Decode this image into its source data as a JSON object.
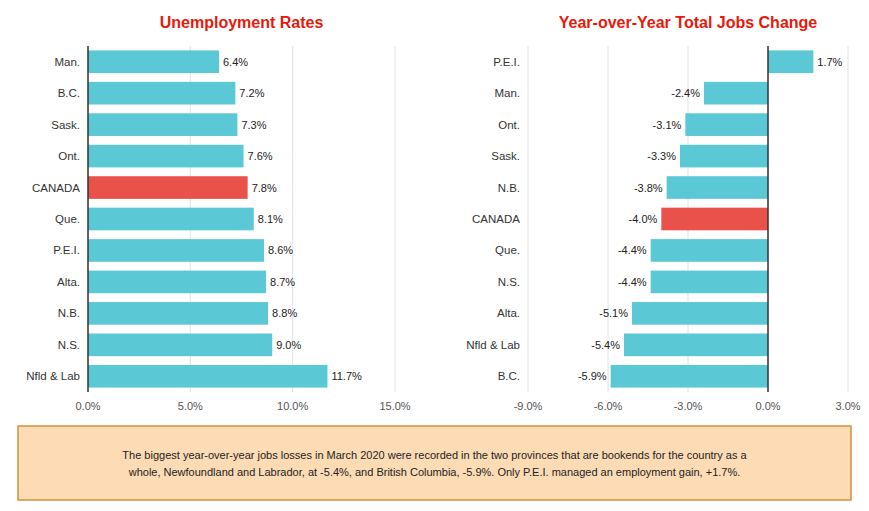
{
  "chart_data": [
    {
      "type": "bar",
      "orientation": "horizontal",
      "title": "Unemployment Rates",
      "categories": [
        "Nfld & Lab",
        "N.S.",
        "N.B.",
        "Alta.",
        "P.E.I.",
        "Que.",
        "CANADA",
        "Ont.",
        "Sask.",
        "B.C.",
        "Man."
      ],
      "values": [
        11.7,
        9.0,
        8.8,
        8.7,
        8.6,
        8.1,
        7.8,
        7.6,
        7.3,
        7.2,
        6.4
      ],
      "value_labels": [
        "11.7%",
        "9.0%",
        "8.8%",
        "8.7%",
        "8.6%",
        "8.1%",
        "7.8%",
        "7.6%",
        "7.3%",
        "7.2%",
        "6.4%"
      ],
      "colors": [
        "#5BC8D6",
        "#5BC8D6",
        "#5BC8D6",
        "#5BC8D6",
        "#5BC8D6",
        "#5BC8D6",
        "#E8524A",
        "#5BC8D6",
        "#5BC8D6",
        "#5BC8D6",
        "#5BC8D6"
      ],
      "xlim": [
        0,
        15.0
      ],
      "xticks": [
        {
          "value": 0.0,
          "label": "0.0%"
        },
        {
          "value": 5.0,
          "label": "5.0%"
        },
        {
          "value": 10.0,
          "label": "10.0%"
        },
        {
          "value": 15.0,
          "label": "15.0%"
        }
      ],
      "grid": true,
      "data_labels": true
    },
    {
      "type": "bar",
      "orientation": "horizontal",
      "title": "Year-over-Year Total Jobs Change",
      "categories": [
        "B.C.",
        "Nfld & Lab",
        "Alta.",
        "N.S.",
        "Que.",
        "CANADA",
        "N.B.",
        "Sask.",
        "Ont.",
        "Man.",
        "P.E.I."
      ],
      "values": [
        -5.9,
        -5.4,
        -5.1,
        -4.4,
        -4.4,
        -4.0,
        -3.8,
        -3.3,
        -3.1,
        -2.4,
        1.7
      ],
      "value_labels": [
        "-5.9%",
        "-5.4%",
        "-5.1%",
        "-4.4%",
        "-4.4%",
        "-4.0%",
        "-3.8%",
        "-3.3%",
        "-3.1%",
        "-2.4%",
        "1.7%"
      ],
      "colors": [
        "#5BC8D6",
        "#5BC8D6",
        "#5BC8D6",
        "#5BC8D6",
        "#5BC8D6",
        "#E8524A",
        "#5BC8D6",
        "#5BC8D6",
        "#5BC8D6",
        "#5BC8D6",
        "#5BC8D6"
      ],
      "xlim": [
        -9.0,
        3.0
      ],
      "xticks": [
        {
          "value": -9.0,
          "label": "-9.0%"
        },
        {
          "value": -6.0,
          "label": "-6.0%"
        },
        {
          "value": -3.0,
          "label": "-3.0%"
        },
        {
          "value": 0.0,
          "label": "0.0%"
        },
        {
          "value": 3.0,
          "label": "3.0%"
        }
      ],
      "grid": true,
      "data_labels": true
    }
  ],
  "footnote": "The biggest year-over-year jobs losses in March 2020 were recorded in the two provinces that are bookends for the country as a\nwhole, Newfoundland and Labrador, at -5.4%, and British Columbia, -5.9%. Only P.E.I. managed an employment gain, +1.7%."
}
